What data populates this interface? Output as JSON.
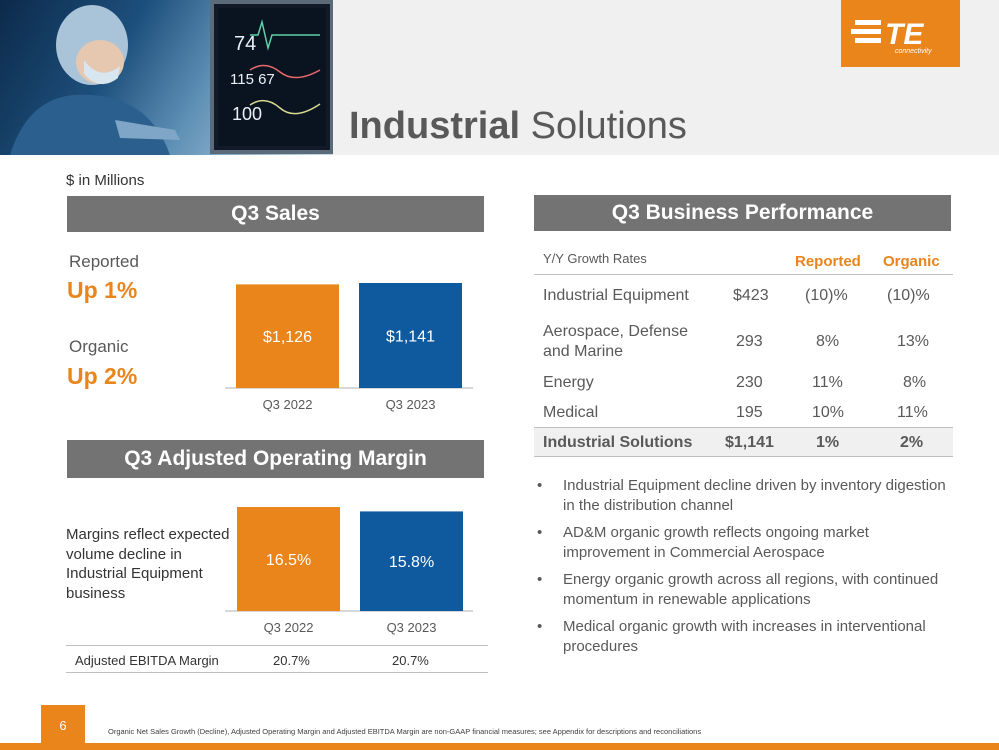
{
  "header": {
    "title_bold": "Industrial",
    "title_rest": "Solutions",
    "logo_text": "TE",
    "logo_sub": "connectivity",
    "hero_monitor_readings": [
      "74",
      "115  67",
      "100"
    ]
  },
  "units_label": "$ in Millions",
  "sales": {
    "section_title": "Q3 Sales",
    "reported_label": "Reported",
    "reported_value": "Up 1%",
    "organic_label": "Organic",
    "organic_value": "Up 2%"
  },
  "margin": {
    "section_title": "Q3 Adjusted Operating Margin",
    "note": "Margins reflect expected volume decline in Industrial Equipment business",
    "ebitda": {
      "label": "Adjusted EBITDA Margin",
      "q3_2022": "20.7%",
      "q3_2023": "20.7%"
    }
  },
  "chart_data": [
    {
      "type": "bar",
      "title": "Q3 Sales",
      "categories": [
        "Q3 2022",
        "Q3 2023"
      ],
      "values": [
        1126,
        1141
      ],
      "labels": [
        "$1,126",
        "$1,141"
      ],
      "colors": [
        "#e9851b",
        "#0f5a9e"
      ],
      "ylim": [
        0,
        1141
      ]
    },
    {
      "type": "bar",
      "title": "Q3 Adjusted Operating Margin",
      "categories": [
        "Q3 2022",
        "Q3 2023"
      ],
      "values": [
        16.5,
        15.8
      ],
      "labels": [
        "16.5%",
        "15.8%"
      ],
      "colors": [
        "#e9851b",
        "#0f5a9e"
      ],
      "ylim": [
        0,
        16.5
      ]
    }
  ],
  "performance": {
    "section_title": "Q3 Business Performance",
    "headers": {
      "name": "Y/Y Growth Rates",
      "reported": "Reported",
      "organic": "Organic"
    },
    "rows": [
      {
        "name": "Industrial Equipment",
        "sales": "$423",
        "reported": "(10)%",
        "organic": "(10)%"
      },
      {
        "name": "Aerospace, Defense and Marine",
        "sales": "293",
        "reported": "8%",
        "organic": "13%"
      },
      {
        "name": "Energy",
        "sales": "230",
        "reported": "11%",
        "organic": "8%"
      },
      {
        "name": "Medical",
        "sales": "195",
        "reported": "10%",
        "organic": "11%"
      }
    ],
    "total": {
      "name": "Industrial Solutions",
      "sales": "$1,141",
      "reported": "1%",
      "organic": "2%"
    }
  },
  "bullets": [
    "Industrial Equipment decline driven by inventory digestion in the distribution channel",
    "AD&M organic growth reflects ongoing market improvement in Commercial Aerospace",
    "Energy organic growth across all regions, with continued momentum in renewable applications",
    "Medical organic growth with increases in interventional procedures"
  ],
  "footer": {
    "page_number": "6",
    "footnote": "Organic Net Sales Growth (Decline), Adjusted Operating Margin and Adjusted EBITDA Margin are non-GAAP financial measures; see Appendix for descriptions and reconciliations"
  },
  "colors": {
    "accent": "#e9851b",
    "blue": "#0f5a9e",
    "bar_gray": "#737373"
  }
}
